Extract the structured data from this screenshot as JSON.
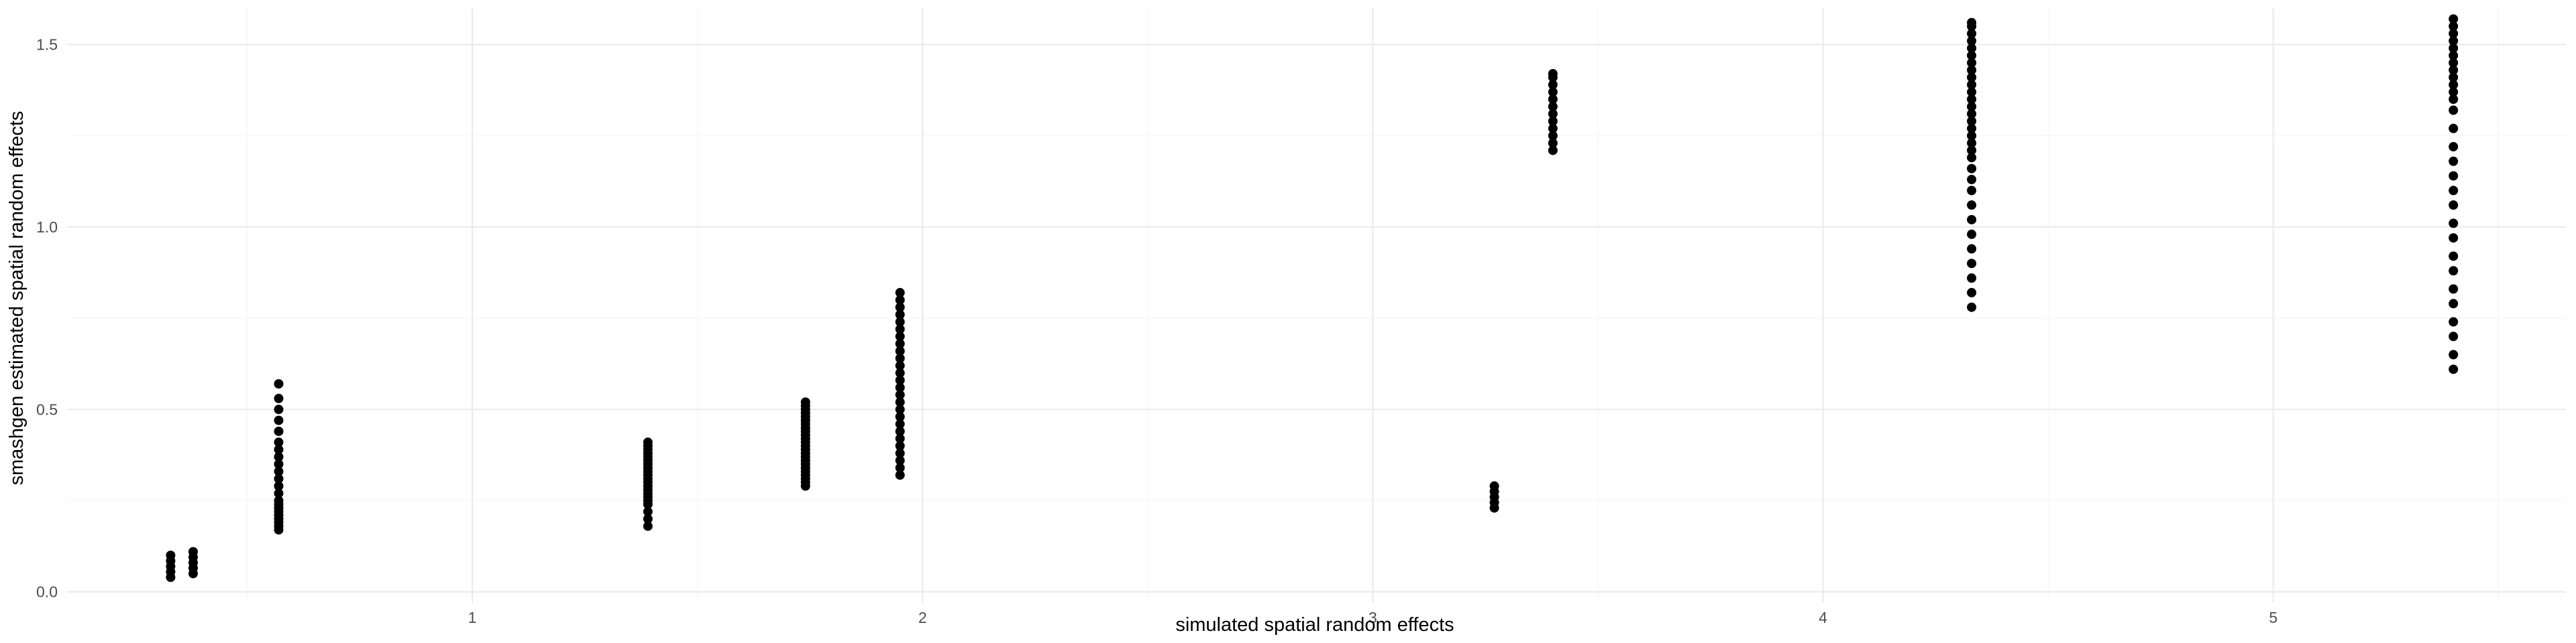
{
  "chart_data": {
    "type": "scatter",
    "title": "",
    "xlabel": "simulated spatial random effects",
    "ylabel": "smashgen estimated spatial random effects",
    "xlim": [
      0.1,
      5.65
    ],
    "ylim": [
      -0.03,
      1.6
    ],
    "x_ticks": [
      1,
      2,
      3,
      4,
      5
    ],
    "y_ticks": [
      0.0,
      0.5,
      1.0,
      1.5
    ],
    "x_tick_labels": [
      "1",
      "2",
      "3",
      "4",
      "5"
    ],
    "y_tick_labels": [
      "0.0",
      "0.5",
      "1.0",
      "1.5"
    ],
    "grid": true,
    "point_color": "#000000",
    "clusters": [
      {
        "x": 0.33,
        "y": [
          0.04,
          0.055,
          0.07,
          0.085,
          0.1
        ]
      },
      {
        "x": 0.38,
        "y": [
          0.05,
          0.065,
          0.08,
          0.095,
          0.11
        ]
      },
      {
        "x": 0.57,
        "y": [
          0.17,
          0.18,
          0.19,
          0.2,
          0.21,
          0.22,
          0.23,
          0.24,
          0.25,
          0.27,
          0.29,
          0.31,
          0.33,
          0.35,
          0.37,
          0.39,
          0.41,
          0.44,
          0.47,
          0.5,
          0.53,
          0.57
        ]
      },
      {
        "x": 1.39,
        "y": [
          0.18,
          0.2,
          0.22,
          0.24,
          0.25,
          0.26,
          0.27,
          0.28,
          0.29,
          0.3,
          0.31,
          0.32,
          0.33,
          0.34,
          0.35,
          0.36,
          0.37,
          0.38,
          0.39,
          0.4,
          0.41
        ]
      },
      {
        "x": 1.74,
        "y": [
          0.29,
          0.3,
          0.31,
          0.32,
          0.33,
          0.34,
          0.35,
          0.36,
          0.37,
          0.38,
          0.39,
          0.4,
          0.41,
          0.42,
          0.43,
          0.44,
          0.45,
          0.46,
          0.47,
          0.48,
          0.49,
          0.5,
          0.51,
          0.52
        ]
      },
      {
        "x": 1.95,
        "y": [
          0.32,
          0.34,
          0.36,
          0.38,
          0.4,
          0.42,
          0.44,
          0.46,
          0.48,
          0.5,
          0.52,
          0.54,
          0.56,
          0.58,
          0.6,
          0.62,
          0.64,
          0.66,
          0.68,
          0.7,
          0.72,
          0.74,
          0.76,
          0.78,
          0.8,
          0.82
        ]
      },
      {
        "x": 3.27,
        "y": [
          0.23,
          0.245,
          0.26,
          0.275,
          0.29
        ]
      },
      {
        "x": 3.4,
        "y": [
          1.21,
          1.23,
          1.25,
          1.27,
          1.29,
          1.31,
          1.33,
          1.35,
          1.37,
          1.39,
          1.41,
          1.42
        ]
      },
      {
        "x": 4.33,
        "y": [
          0.78,
          0.82,
          0.86,
          0.9,
          0.94,
          0.98,
          1.02,
          1.06,
          1.1,
          1.13,
          1.16,
          1.19,
          1.21,
          1.23,
          1.25,
          1.27,
          1.29,
          1.31,
          1.33,
          1.35,
          1.37,
          1.39,
          1.41,
          1.43,
          1.45,
          1.47,
          1.49,
          1.51,
          1.53,
          1.55,
          1.56
        ]
      },
      {
        "x": 5.4,
        "y": [
          0.61,
          0.65,
          0.7,
          0.74,
          0.79,
          0.83,
          0.88,
          0.92,
          0.97,
          1.01,
          1.06,
          1.1,
          1.14,
          1.18,
          1.22,
          1.27,
          1.32,
          1.35,
          1.37,
          1.39,
          1.41,
          1.43,
          1.45,
          1.47,
          1.49,
          1.51,
          1.53,
          1.55,
          1.57
        ]
      }
    ]
  }
}
